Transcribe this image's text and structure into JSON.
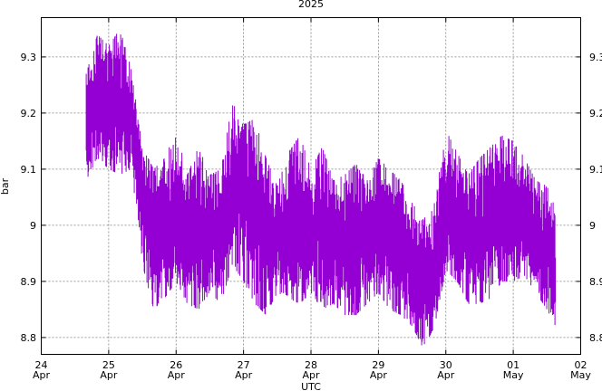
{
  "chart_data": {
    "type": "line",
    "title": "2025",
    "xlabel": "UTC",
    "ylabel": "bar",
    "color": "#9400d3",
    "grid": true,
    "legend": "none",
    "xlim": [
      "2025-04-24",
      "2025-05-02"
    ],
    "ylim": [
      8.77,
      9.37
    ],
    "x_ticks": [
      {
        "date": "2025-04-24",
        "day": "24",
        "month": "Apr"
      },
      {
        "date": "2025-04-25",
        "day": "25",
        "month": "Apr"
      },
      {
        "date": "2025-04-26",
        "day": "26",
        "month": "Apr"
      },
      {
        "date": "2025-04-27",
        "day": "27",
        "month": "Apr"
      },
      {
        "date": "2025-04-28",
        "day": "28",
        "month": "Apr"
      },
      {
        "date": "2025-04-29",
        "day": "29",
        "month": "Apr"
      },
      {
        "date": "2025-04-30",
        "day": "30",
        "month": "Apr"
      },
      {
        "date": "2025-05-01",
        "day": "01",
        "month": "May"
      },
      {
        "date": "2025-05-02",
        "day": "02",
        "month": "May"
      }
    ],
    "y_ticks": [
      {
        "value": 8.8,
        "label": "8.8"
      },
      {
        "value": 8.9,
        "label": "8.9"
      },
      {
        "value": 9.0,
        "label": "9"
      },
      {
        "value": 9.1,
        "label": "9.1"
      },
      {
        "value": 9.2,
        "label": "9.2"
      },
      {
        "value": 9.3,
        "label": "9.3"
      }
    ],
    "series": [
      {
        "x": [
          "2025-04-24T16:00",
          "2025-04-24T20:00",
          "2025-04-25T00:00",
          "2025-04-25T04:00",
          "2025-04-25T08:00",
          "2025-04-25T12:00",
          "2025-04-25T16:00",
          "2025-04-25T20:00",
          "2025-04-26T00:00",
          "2025-04-26T04:00",
          "2025-04-26T08:00",
          "2025-04-26T12:00",
          "2025-04-26T16:00",
          "2025-04-26T20:00",
          "2025-04-27T00:00",
          "2025-04-27T04:00",
          "2025-04-27T08:00",
          "2025-04-27T12:00",
          "2025-04-27T16:00",
          "2025-04-27T20:00",
          "2025-04-28T00:00",
          "2025-04-28T04:00",
          "2025-04-28T08:00",
          "2025-04-28T12:00",
          "2025-04-28T16:00",
          "2025-04-28T20:00",
          "2025-04-29T00:00",
          "2025-04-29T04:00",
          "2025-04-29T08:00",
          "2025-04-29T12:00",
          "2025-04-29T16:00",
          "2025-04-29T20:00",
          "2025-04-30T00:00",
          "2025-04-30T04:00",
          "2025-04-30T08:00",
          "2025-04-30T12:00",
          "2025-04-30T16:00",
          "2025-04-30T20:00",
          "2025-05-01T00:00",
          "2025-05-01T04:00",
          "2025-05-01T08:00",
          "2025-05-01T12:00",
          "2025-05-01T15:00"
        ],
        "low": [
          9.08,
          9.12,
          9.1,
          9.09,
          9.1,
          8.93,
          8.85,
          8.87,
          8.9,
          8.86,
          8.85,
          8.88,
          8.86,
          8.93,
          8.9,
          8.86,
          8.84,
          8.88,
          8.87,
          8.86,
          8.88,
          8.85,
          8.86,
          8.84,
          8.84,
          8.86,
          8.88,
          8.85,
          8.84,
          8.82,
          8.78,
          8.82,
          8.92,
          8.9,
          8.86,
          8.86,
          8.87,
          8.9,
          8.9,
          8.91,
          8.88,
          8.85,
          8.82
        ],
        "high": [
          9.27,
          9.34,
          9.32,
          9.35,
          9.28,
          9.14,
          9.1,
          9.12,
          9.17,
          9.09,
          9.14,
          9.09,
          9.1,
          9.22,
          9.18,
          9.19,
          9.12,
          9.07,
          9.13,
          9.16,
          9.1,
          9.14,
          9.08,
          9.09,
          9.11,
          9.08,
          9.12,
          9.1,
          9.08,
          9.04,
          9.01,
          9.04,
          9.17,
          9.13,
          9.09,
          9.12,
          9.14,
          9.16,
          9.15,
          9.12,
          9.08,
          9.07,
          9.03
        ]
      }
    ]
  }
}
